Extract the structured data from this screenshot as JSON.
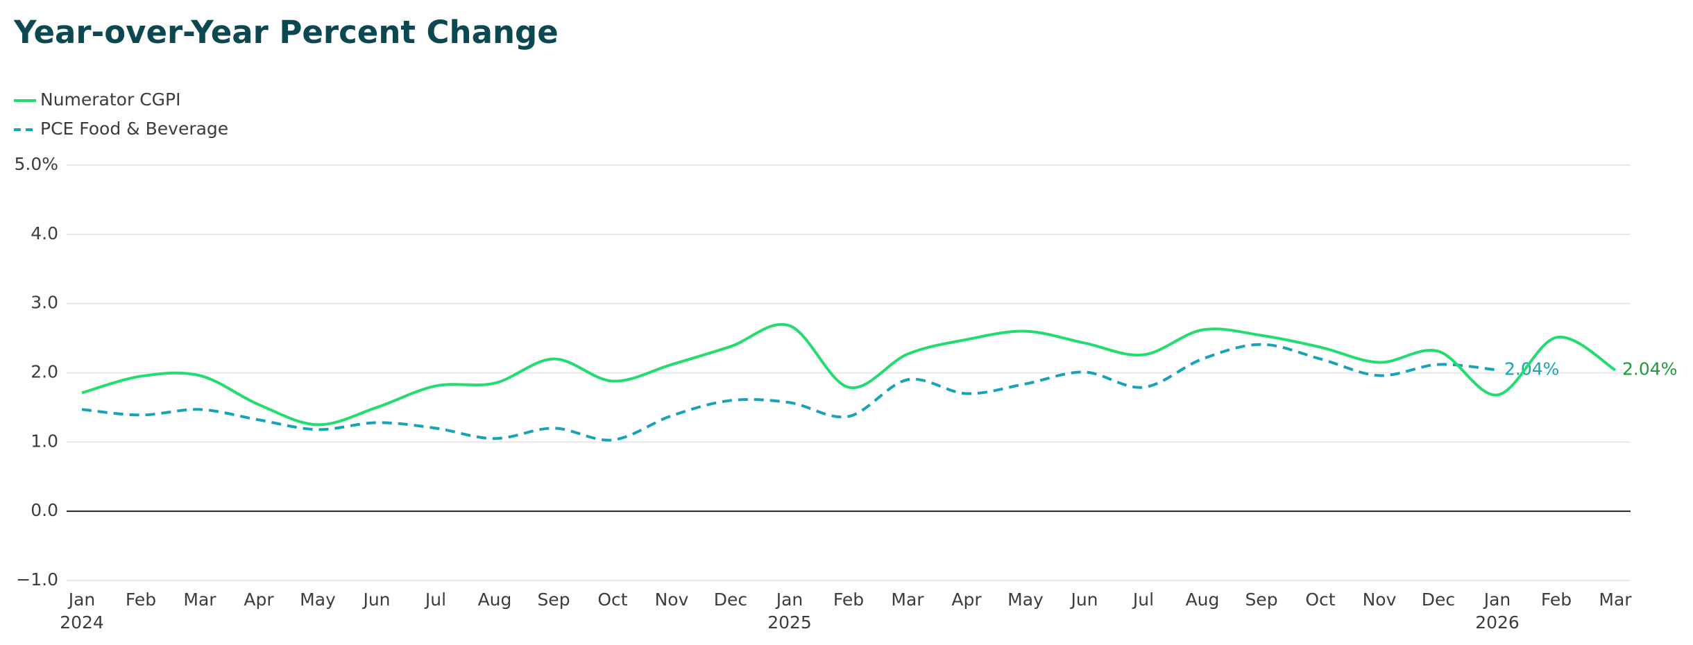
{
  "chart_data": {
    "type": "line",
    "title": "Year-over-Year Percent Change",
    "categories": [
      "Jan",
      "Feb",
      "Mar",
      "Apr",
      "May",
      "Jun",
      "Jul",
      "Aug",
      "Sep",
      "Oct",
      "Nov",
      "Dec",
      "Jan",
      "Feb",
      "Mar",
      "Apr",
      "May",
      "Jun",
      "Jul",
      "Aug",
      "Sep",
      "Oct",
      "Nov",
      "Dec",
      "Jan",
      "Feb",
      "Mar"
    ],
    "x_year_labels": [
      "2024",
      null,
      null,
      null,
      null,
      null,
      null,
      null,
      null,
      null,
      null,
      null,
      "2025",
      null,
      null,
      null,
      null,
      null,
      null,
      null,
      null,
      null,
      null,
      null,
      "2026",
      null,
      null
    ],
    "series": [
      {
        "name": "Numerator CGPI",
        "color": "#22dd6e",
        "label_color": "#1f9a3a",
        "dash": false,
        "end_label": "2.04%",
        "values": [
          1.71,
          1.95,
          1.96,
          1.54,
          1.25,
          1.5,
          1.81,
          1.85,
          2.2,
          1.88,
          2.12,
          2.38,
          2.68,
          1.79,
          2.27,
          2.48,
          2.6,
          2.43,
          2.26,
          2.62,
          2.54,
          2.37,
          2.15,
          2.31,
          1.68,
          2.51,
          2.04
        ]
      },
      {
        "name": "PCE Food & Beverage",
        "color": "#16a3b8",
        "label_color": "#16a3b8",
        "dash": true,
        "end_label": "2.04%",
        "values": [
          1.47,
          1.39,
          1.47,
          1.32,
          1.18,
          1.28,
          1.2,
          1.05,
          1.2,
          1.03,
          1.38,
          1.6,
          1.57,
          1.37,
          1.9,
          1.7,
          1.84,
          2.01,
          1.79,
          2.2,
          2.41,
          2.2,
          1.96,
          2.12,
          2.04,
          null,
          null
        ]
      }
    ],
    "ylim": [
      -1,
      5
    ],
    "yticks": [
      {
        "value": 5,
        "label": "5.0%"
      },
      {
        "value": 4,
        "label": "4.0"
      },
      {
        "value": 3,
        "label": "3.0"
      },
      {
        "value": 2,
        "label": "2.0"
      },
      {
        "value": 1,
        "label": "1.0"
      },
      {
        "value": 0,
        "label": "0.0"
      },
      {
        "value": -1,
        "label": "−1.0"
      }
    ],
    "grid": true
  }
}
